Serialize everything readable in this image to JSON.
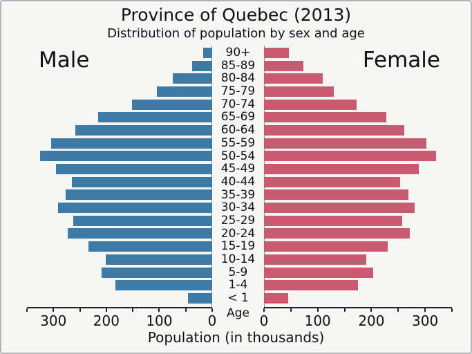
{
  "chart_data": {
    "type": "bar",
    "variant": "population_pyramid",
    "title": "Province of Quebec (2013)",
    "subtitle": "Distribution of population by sex and age",
    "left_header": "Male",
    "right_header": "Female",
    "age_axis_title": "Age",
    "xlabel": "Population (in thousands)",
    "unit": "thousands",
    "xlim": [
      0,
      350
    ],
    "x_tick_step": 50,
    "x_labeled_ticks": [
      0,
      100,
      200,
      300
    ],
    "grid": false,
    "legend": "none",
    "categories": [
      "90+",
      "85-89",
      "80-84",
      "75-79",
      "70-74",
      "65-69",
      "60-64",
      "55-59",
      "50-54",
      "45-49",
      "40-44",
      "35-39",
      "30-34",
      "25-29",
      "20-24",
      "15-19",
      "10-14",
      "5-9",
      "1-4",
      "< 1"
    ],
    "series": [
      {
        "name": "Male",
        "side": "left",
        "color": "#3d7aa6",
        "values": [
          17,
          38,
          75,
          104,
          151,
          216,
          258,
          304,
          325,
          295,
          265,
          277,
          291,
          262,
          273,
          234,
          201,
          209,
          183,
          46
        ]
      },
      {
        "name": "Female",
        "side": "right",
        "color": "#c95b70",
        "values": [
          46,
          73,
          110,
          130,
          172,
          228,
          261,
          302,
          320,
          288,
          254,
          269,
          281,
          257,
          271,
          230,
          191,
          203,
          175,
          45
        ]
      }
    ]
  },
  "colors": {
    "male_bar": "#3d7aa6",
    "female_bar": "#c95b70",
    "background": "#f6f6f4",
    "frame_border": "#b5b5b5",
    "axis_line": "#262626",
    "spine": "#8a8a8a",
    "text": "#111111"
  }
}
